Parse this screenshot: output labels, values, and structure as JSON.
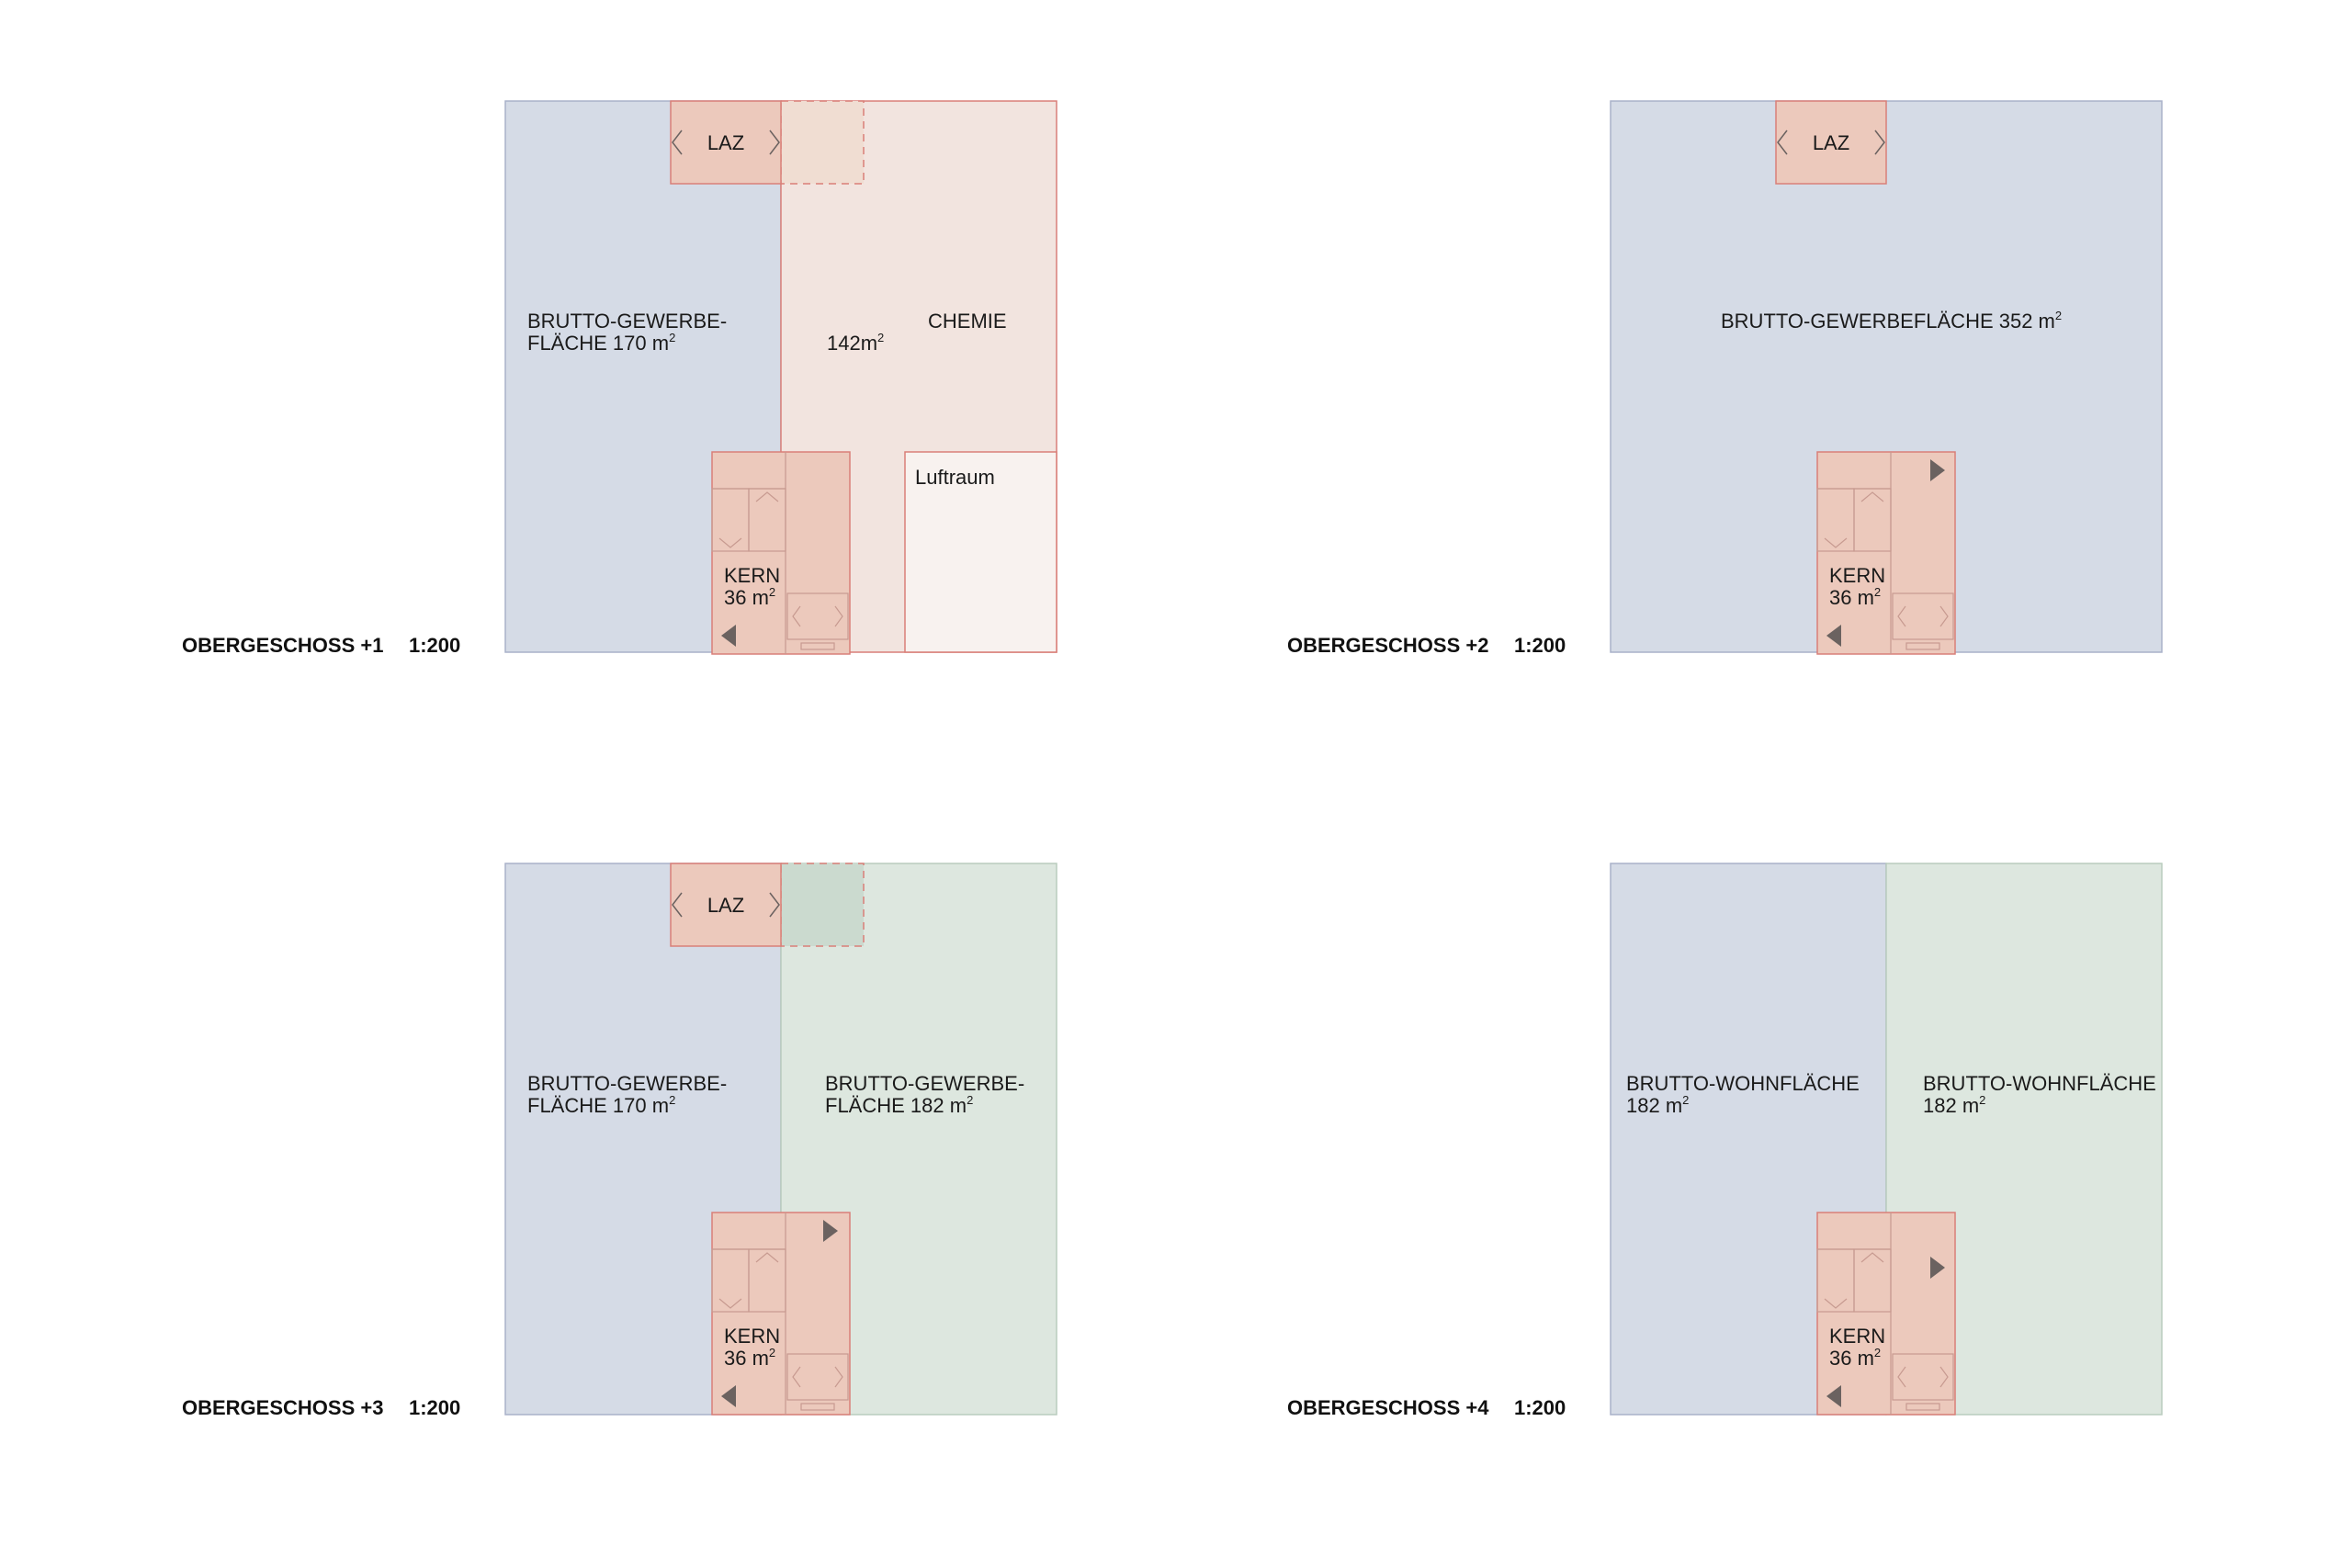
{
  "colors": {
    "gewerbe": "#d5dbe6",
    "gewerbe_stroke": "#a9b1c9",
    "chemie": "#f2e4df",
    "luftraum": "#f8f2ef",
    "wohn_green": "#dde7df",
    "green_stroke": "#b9ccbd",
    "core": "#ecc9bc",
    "core_stroke": "#d97f78",
    "laz_overlap_red": "#f0ddd2",
    "laz_overlap_green": "#cbdacf",
    "arrow": "#6b6260",
    "line": "#c79a90"
  },
  "icons": [
    "chevron-left-icon",
    "chevron-right-icon",
    "triangle-arrow-icon",
    "elevator-icon",
    "stair-icon"
  ],
  "plans": [
    {
      "title": "OBERGESCHOSS +1",
      "scale": "1:200",
      "laz": "LAZ",
      "left_label": [
        "BRUTTO-GEWERBE-",
        "FLÄCHE 170 m"
      ],
      "right_label_area": "142m",
      "right_label_name": "CHEMIE",
      "luftraum": "Luftraum",
      "kern": [
        "KERN",
        "36 m"
      ]
    },
    {
      "title": "OBERGESCHOSS +2",
      "scale": "1:200",
      "laz": "LAZ",
      "full_label": "BRUTTO-GEWERBEFLÄCHE 352 m",
      "kern": [
        "KERN",
        "36 m"
      ]
    },
    {
      "title": "OBERGESCHOSS +3",
      "scale": "1:200",
      "laz": "LAZ",
      "left_label": [
        "BRUTTO-GEWERBE-",
        "FLÄCHE 170 m"
      ],
      "right_label": [
        "BRUTTO-GEWERBE-",
        "FLÄCHE 182 m"
      ],
      "kern": [
        "KERN",
        "36 m"
      ]
    },
    {
      "title": "OBERGESCHOSS +4",
      "scale": "1:200",
      "left_label": [
        "BRUTTO-WOHNFLÄCHE",
        "182 m"
      ],
      "right_label": [
        "BRUTTO-WOHNFLÄCHE",
        "182 m"
      ],
      "kern": [
        "KERN",
        "36 m"
      ]
    }
  ]
}
